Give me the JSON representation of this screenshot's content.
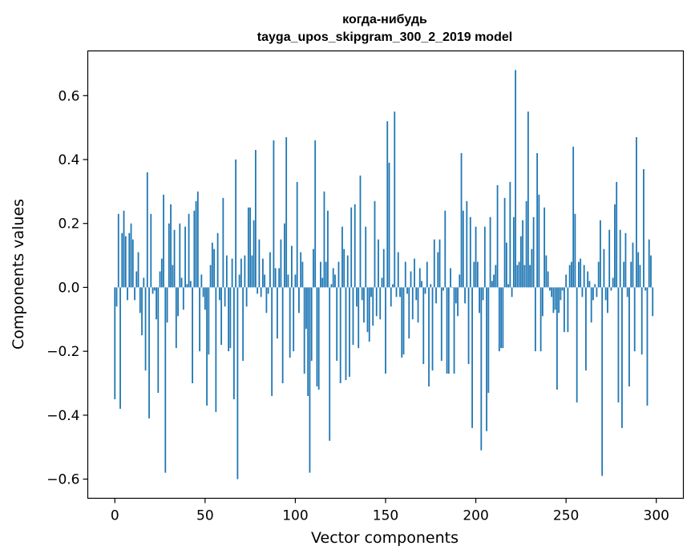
{
  "chart_data": {
    "type": "bar",
    "title": [
      "когда-нибудь",
      "tayga_upos_skipgram_300_2_2019 model"
    ],
    "xlabel": "Vector components",
    "ylabel": "Components values",
    "xlim": [
      -15,
      315
    ],
    "ylim": [
      -0.66,
      0.74
    ],
    "xticks": [
      0,
      50,
      100,
      150,
      200,
      250,
      300
    ],
    "yticks": [
      -0.6,
      -0.4,
      -0.2,
      0.0,
      0.2,
      0.4,
      0.6
    ],
    "ytick_labels": [
      "−0.6",
      "−0.4",
      "−0.2",
      "0.0",
      "0.2",
      "0.4",
      "0.6"
    ],
    "bar_color": "#1f77b4",
    "grid": false,
    "legend": "none",
    "values": [
      -0.35,
      -0.06,
      0.23,
      -0.38,
      0.17,
      0.24,
      0.16,
      -0.04,
      0.17,
      0.2,
      0.15,
      -0.04,
      0.05,
      0.11,
      -0.08,
      -0.15,
      0.03,
      -0.26,
      0.36,
      -0.41,
      0.23,
      -0.02,
      -0.01,
      -0.1,
      -0.33,
      0.05,
      0.09,
      0.29,
      -0.58,
      -0.11,
      0.2,
      0.26,
      0.07,
      0.18,
      -0.19,
      -0.09,
      0.2,
      0.03,
      -0.07,
      0.19,
      0.01,
      0.23,
      0.02,
      -0.3,
      0.24,
      0.27,
      0.3,
      -0.2,
      0.04,
      -0.03,
      -0.07,
      -0.37,
      -0.21,
      0.07,
      0.14,
      0.12,
      -0.39,
      0.17,
      -0.04,
      -0.18,
      0.28,
      -0.06,
      0.1,
      -0.2,
      -0.19,
      0.09,
      -0.35,
      0.4,
      -0.6,
      0.04,
      0.09,
      -0.23,
      0.1,
      -0.06,
      0.25,
      0.25,
      0.1,
      0.21,
      0.43,
      -0.02,
      0.15,
      -0.03,
      0.09,
      0.04,
      -0.08,
      -0.02,
      0.11,
      -0.34,
      0.46,
      0.06,
      -0.16,
      0.06,
      0.15,
      -0.3,
      0.2,
      0.47,
      0.04,
      -0.22,
      0.13,
      -0.2,
      0.04,
      0.33,
      -0.08,
      0.11,
      0.08,
      -0.27,
      -0.13,
      -0.34,
      -0.58,
      -0.23,
      0.12,
      0.46,
      -0.31,
      -0.32,
      0.08,
      0.03,
      0.3,
      0.08,
      0.24,
      -0.48,
      0.01,
      0.06,
      0.04,
      -0.23,
      0.08,
      -0.3,
      0.19,
      0.12,
      -0.29,
      0.1,
      -0.28,
      0.25,
      -0.18,
      0.26,
      -0.06,
      -0.19,
      0.35,
      -0.04,
      -0.11,
      0.19,
      -0.14,
      -0.17,
      -0.03,
      -0.12,
      0.27,
      -0.09,
      0.15,
      -0.1,
      0.03,
      0.12,
      -0.27,
      0.52,
      0.39,
      -0.06,
      0.01,
      0.55,
      -0.03,
      0.11,
      -0.03,
      -0.22,
      -0.21,
      0.08,
      -0.02,
      -0.16,
      0.05,
      -0.1,
      0.09,
      -0.04,
      -0.11,
      0.06,
      0.02,
      -0.24,
      -0.02,
      0.08,
      -0.31,
      0.01,
      -0.26,
      0.15,
      -0.05,
      0.11,
      0.15,
      -0.23,
      -0.01,
      0.24,
      -0.27,
      -0.27,
      0.06,
      0.0,
      -0.27,
      -0.05,
      -0.09,
      0.04,
      0.42,
      0.24,
      -0.05,
      0.27,
      -0.24,
      0.22,
      -0.44,
      0.08,
      0.19,
      0.08,
      -0.08,
      -0.51,
      -0.04,
      0.19,
      -0.45,
      -0.33,
      0.22,
      0.02,
      0.04,
      0.07,
      0.32,
      -0.2,
      -0.19,
      -0.19,
      0.28,
      0.14,
      0.01,
      0.33,
      -0.03,
      0.22,
      0.68,
      0.07,
      0.08,
      0.16,
      0.21,
      0.07,
      0.27,
      0.55,
      0.07,
      0.12,
      0.22,
      -0.2,
      0.42,
      0.29,
      -0.2,
      -0.09,
      0.25,
      0.1,
      0.05,
      -0.01,
      -0.03,
      -0.08,
      -0.07,
      -0.32,
      -0.08,
      -0.04,
      -0.01,
      -0.14,
      0.04,
      -0.14,
      0.07,
      0.08,
      0.44,
      0.23,
      -0.36,
      0.08,
      0.09,
      -0.03,
      0.07,
      -0.26,
      0.05,
      0.02,
      -0.11,
      -0.04,
      0.01,
      -0.03,
      0.08,
      0.21,
      -0.59,
      0.12,
      -0.04,
      -0.08,
      0.18,
      -0.01,
      0.03,
      0.26,
      0.33,
      -0.36,
      0.18,
      -0.44,
      0.08,
      0.17,
      -0.03,
      -0.31,
      0.08,
      0.14,
      -0.2,
      0.47,
      0.11,
      0.07,
      -0.21,
      0.37,
      -0.01,
      -0.37,
      0.15,
      0.1,
      -0.09
    ]
  }
}
